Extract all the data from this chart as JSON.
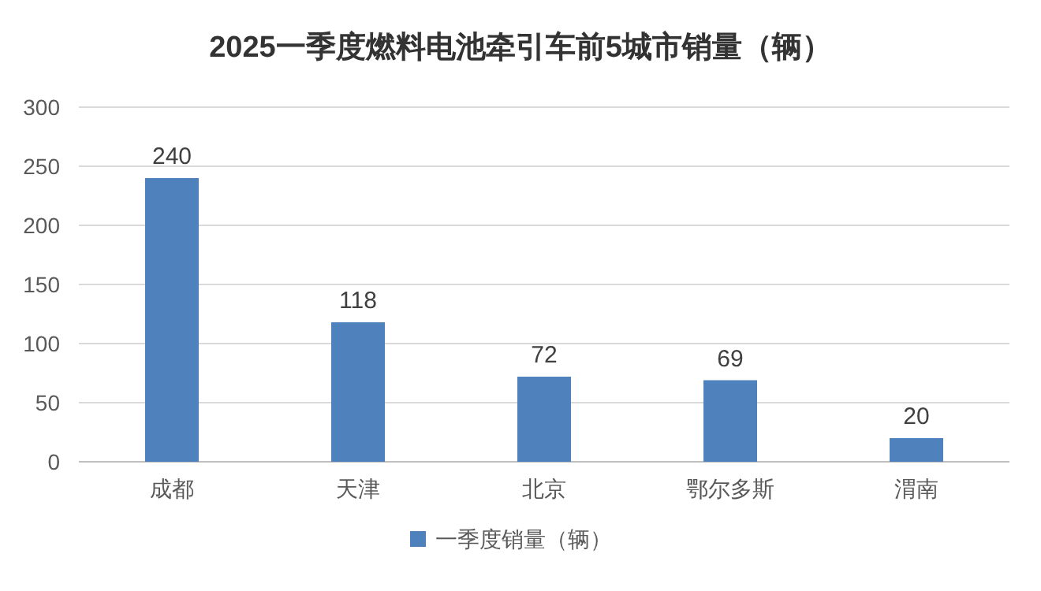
{
  "chart_data": {
    "type": "bar",
    "title": "2025一季度燃料电池牵引车前5城市销量（辆）",
    "categories": [
      "成都",
      "天津",
      "北京",
      "鄂尔多斯",
      "渭南"
    ],
    "series": [
      {
        "name": "一季度销量（辆）",
        "color": "#4f81bd",
        "values": [
          240,
          118,
          72,
          69,
          20
        ]
      }
    ],
    "ylim": [
      0,
      300
    ],
    "yticks": [
      0,
      50,
      100,
      150,
      200,
      250,
      300
    ],
    "grid": "y",
    "legend": "bottom",
    "data_labels": true
  }
}
